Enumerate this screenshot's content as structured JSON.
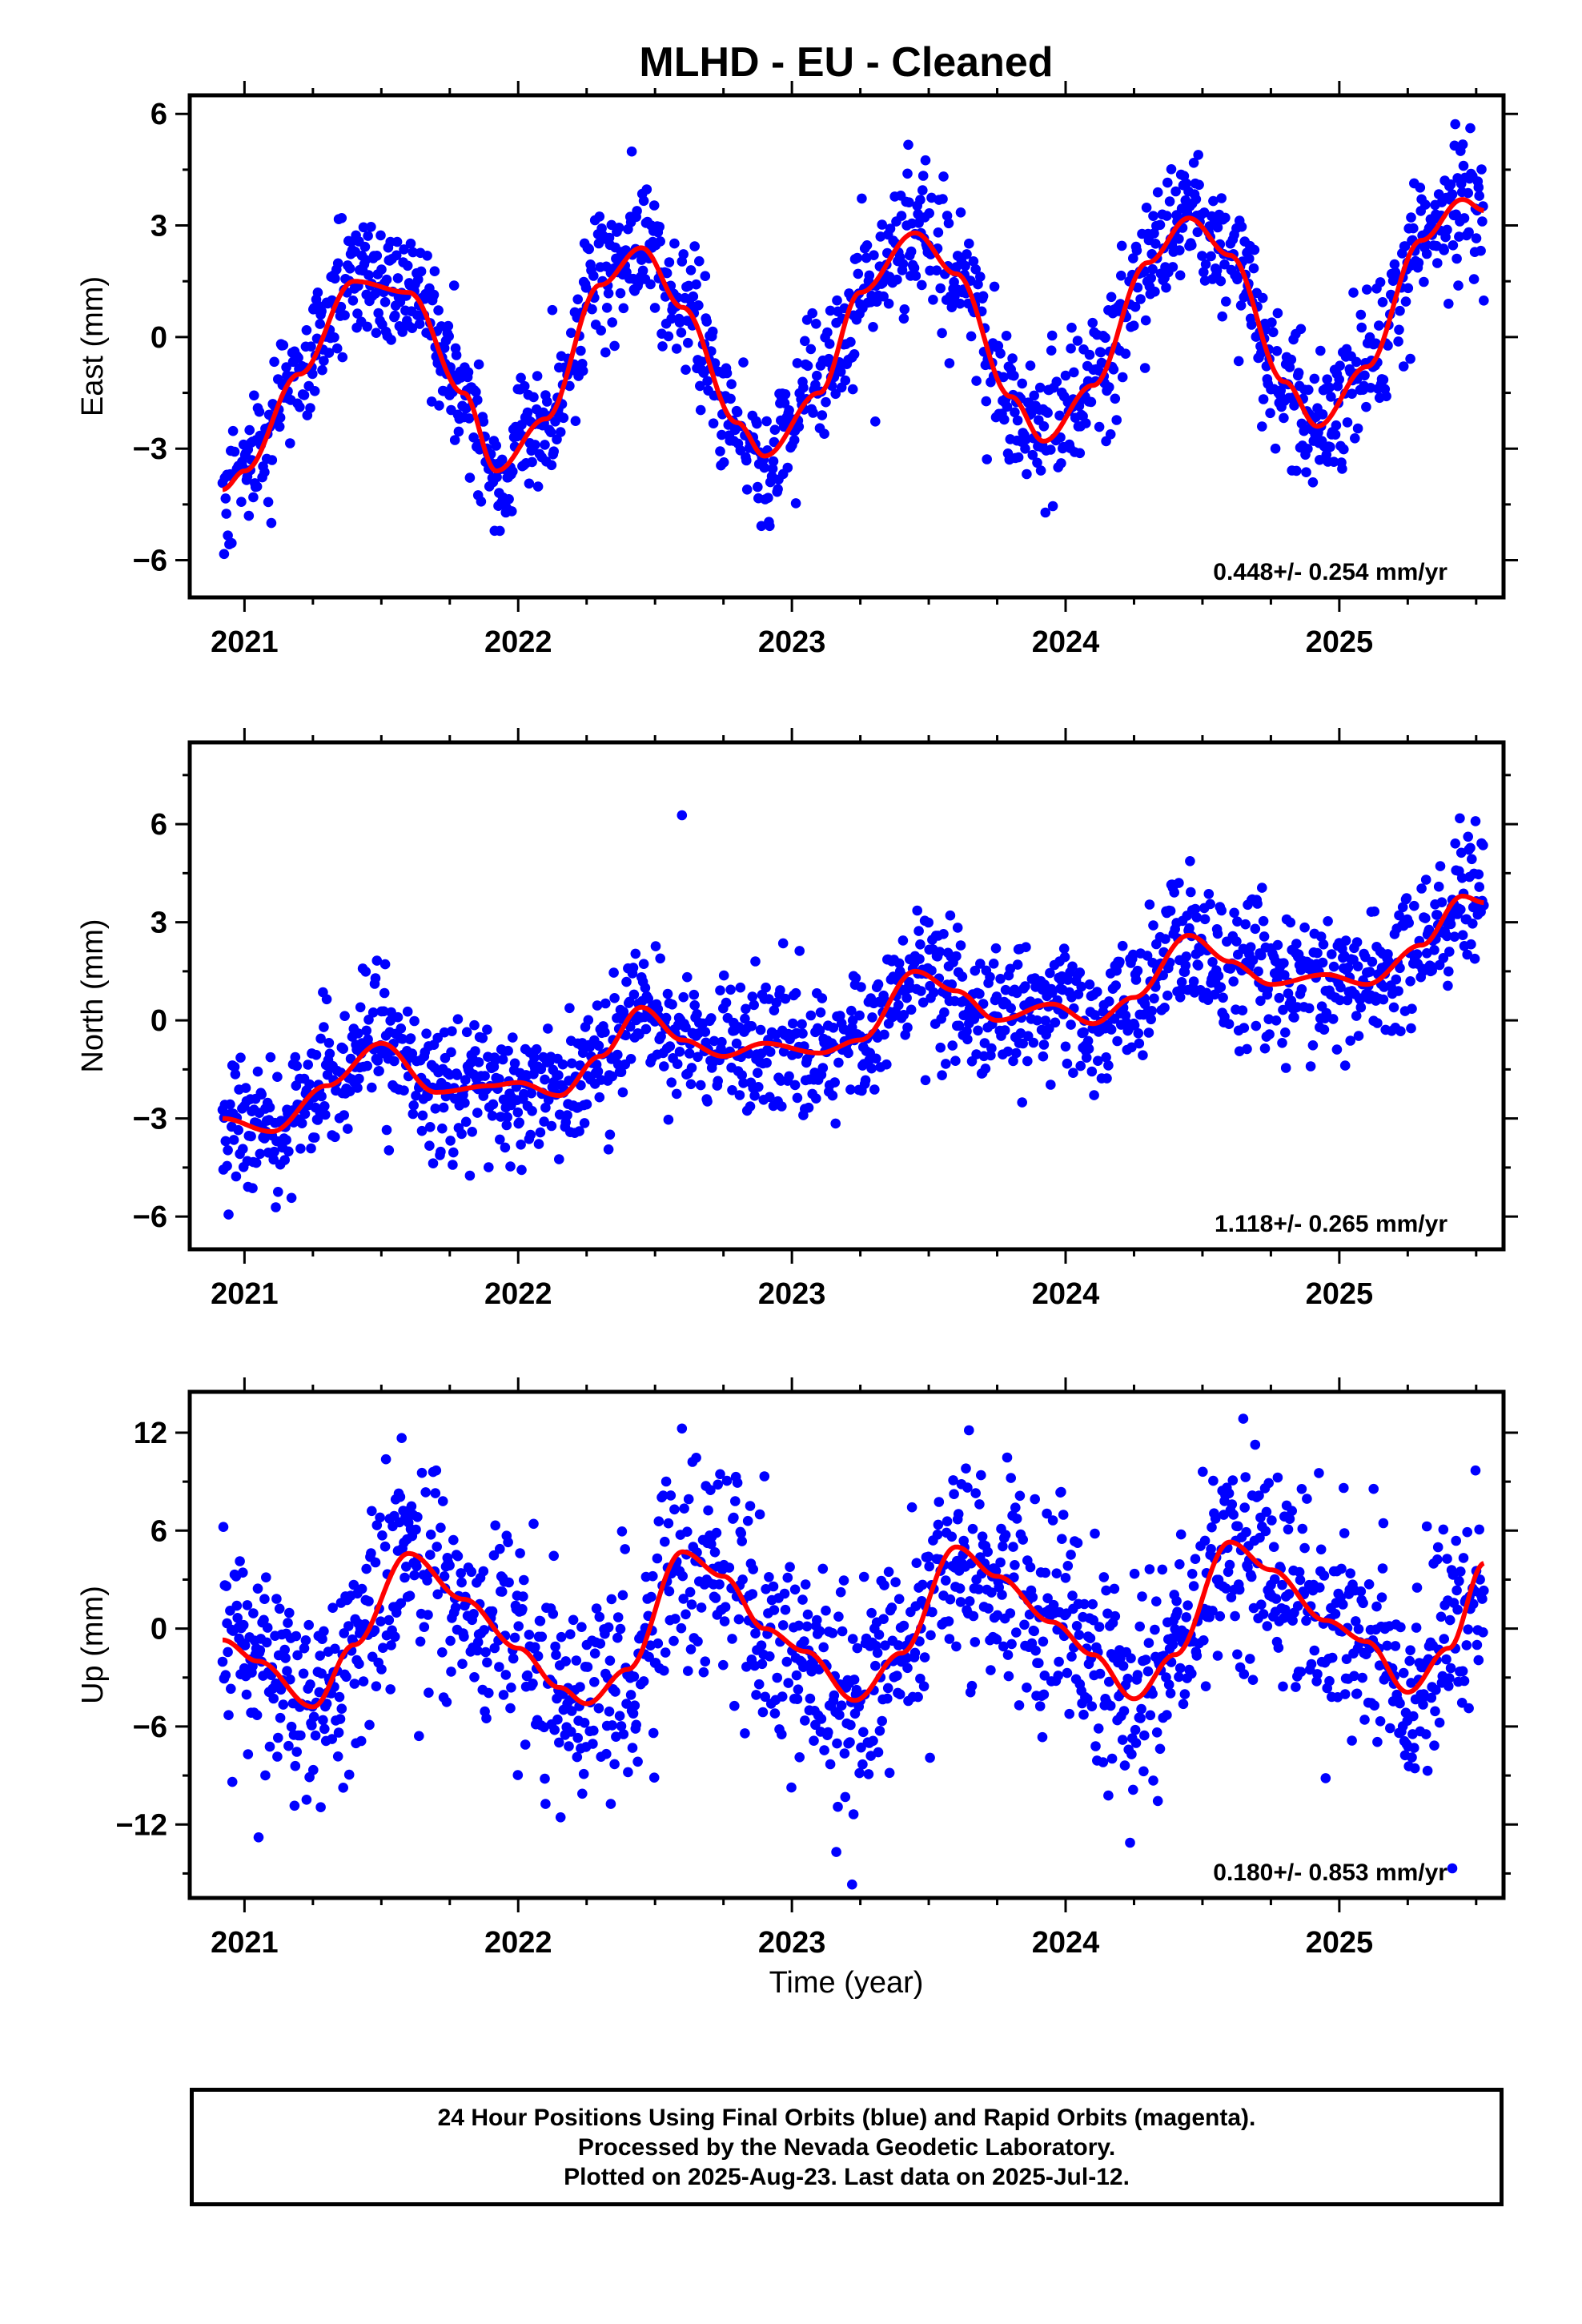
{
  "figure": {
    "title": "MLHD  - EU - Cleaned",
    "xlabel": "Time (year)"
  },
  "footer": {
    "line1": "24 Hour Positions Using Final Orbits (blue) and Rapid Orbits (magenta).",
    "line2": "Processed by the Nevada Geodetic Laboratory.",
    "line3": "Plotted on 2025-Aug-23. Last data on 2025-Jul-12."
  },
  "colors": {
    "points": "#0000ff",
    "fit": "#ff0000",
    "frame": "#000000"
  },
  "chart_data": [
    {
      "type": "scatter",
      "name": "east",
      "ylabel": "East (mm)",
      "rate_text": "0.448+/- 0.254 mm/yr",
      "xlim": [
        2020.8,
        2025.6
      ],
      "ylim": [
        -7.0,
        6.5
      ],
      "xticks": [
        2021,
        2022,
        2023,
        2024,
        2025
      ],
      "yticks": [
        -6,
        -3,
        0,
        3,
        6
      ],
      "ytick_labels": [
        "−6",
        "−3",
        "0",
        "3",
        "6"
      ],
      "data_start": 2020.92,
      "data_end": 2025.53,
      "noise_sd": 0.9,
      "fit": {
        "x": [
          2020.92,
          2021.0,
          2021.2,
          2021.4,
          2021.6,
          2021.8,
          2021.92,
          2022.1,
          2022.3,
          2022.45,
          2022.6,
          2022.8,
          2022.9,
          2023.1,
          2023.25,
          2023.45,
          2023.6,
          2023.8,
          2023.92,
          2024.1,
          2024.3,
          2024.45,
          2024.6,
          2024.8,
          2024.92,
          2025.1,
          2025.3,
          2025.45,
          2025.53
        ],
        "y": [
          -4.1,
          -3.6,
          -1.0,
          1.5,
          1.2,
          -1.5,
          -3.6,
          -2.2,
          1.4,
          2.4,
          0.8,
          -2.3,
          -3.2,
          -1.5,
          1.2,
          2.8,
          1.7,
          -1.6,
          -2.8,
          -1.3,
          2.0,
          3.2,
          2.2,
          -1.2,
          -2.4,
          -0.8,
          2.6,
          3.7,
          3.4
        ]
      }
    },
    {
      "type": "scatter",
      "name": "north",
      "ylabel": "North (mm)",
      "rate_text": "1.118+/- 0.265 mm/yr",
      "xlim": [
        2020.8,
        2025.6
      ],
      "ylim": [
        -7.0,
        8.5
      ],
      "xticks": [
        2021,
        2022,
        2023,
        2024,
        2025
      ],
      "yticks": [
        -6,
        -3,
        0,
        3,
        6
      ],
      "ytick_labels": [
        "−6",
        "−3",
        "0",
        "3",
        "6"
      ],
      "data_start": 2020.92,
      "data_end": 2025.53,
      "noise_sd": 1.0,
      "fit": {
        "x": [
          2020.92,
          2021.1,
          2021.3,
          2021.5,
          2021.7,
          2021.9,
          2022.0,
          2022.15,
          2022.3,
          2022.45,
          2022.6,
          2022.75,
          2022.9,
          2023.1,
          2023.25,
          2023.45,
          2023.6,
          2023.75,
          2023.95,
          2024.1,
          2024.25,
          2024.45,
          2024.6,
          2024.75,
          2024.95,
          2025.1,
          2025.3,
          2025.45,
          2025.53
        ],
        "y": [
          -3.0,
          -3.4,
          -2.0,
          -0.7,
          -2.2,
          -2.0,
          -1.9,
          -2.3,
          -1.1,
          0.4,
          -0.6,
          -1.1,
          -0.7,
          -1.0,
          -0.6,
          1.5,
          0.9,
          0.0,
          0.5,
          -0.1,
          0.7,
          2.6,
          1.8,
          1.1,
          1.4,
          1.1,
          2.3,
          3.8,
          3.6
        ]
      }
    },
    {
      "type": "scatter",
      "name": "up",
      "ylabel": "Up (mm)",
      "rate_text": "0.180+/- 0.853 mm/yr",
      "xlim": [
        2020.8,
        2025.6
      ],
      "ylim": [
        -16.5,
        14.5
      ],
      "xticks": [
        2021,
        2022,
        2023,
        2024,
        2025
      ],
      "yticks": [
        -12,
        -6,
        0,
        6,
        12
      ],
      "ytick_labels": [
        "−12",
        "−6",
        "0",
        "6",
        "12"
      ],
      "data_start": 2020.92,
      "data_end": 2025.53,
      "noise_sd": 3.3,
      "fit": {
        "x": [
          2020.92,
          2021.05,
          2021.25,
          2021.4,
          2021.6,
          2021.8,
          2022.0,
          2022.15,
          2022.25,
          2022.4,
          2022.6,
          2022.75,
          2022.9,
          2023.05,
          2023.23,
          2023.4,
          2023.6,
          2023.75,
          2023.95,
          2024.1,
          2024.25,
          2024.4,
          2024.6,
          2024.75,
          2024.95,
          2025.1,
          2025.25,
          2025.4,
          2025.53
        ],
        "y": [
          -0.7,
          -2.0,
          -4.8,
          -1.0,
          4.6,
          1.8,
          -1.2,
          -3.6,
          -4.6,
          -2.5,
          4.7,
          3.2,
          0.0,
          -1.4,
          -4.4,
          -1.5,
          5.0,
          3.2,
          0.4,
          -1.6,
          -4.3,
          -1.6,
          5.3,
          3.6,
          0.5,
          -0.8,
          -3.9,
          -1.2,
          4.0
        ]
      }
    }
  ]
}
